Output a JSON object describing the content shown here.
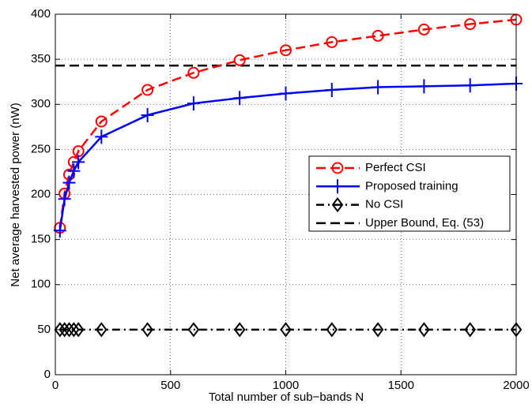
{
  "chart_data": {
    "type": "line",
    "xlabel": "Total number of sub−bands N",
    "ylabel": "Net average harvested power (nW)",
    "x": [
      20,
      40,
      60,
      80,
      100,
      200,
      400,
      600,
      800,
      1000,
      1200,
      1400,
      1600,
      1800,
      2000
    ],
    "series": [
      {
        "name": "Perfect CSI",
        "color": "#ff0000",
        "linestyle": "dashed",
        "marker": "circle",
        "values": [
          163,
          201,
          222,
          236,
          248,
          281,
          316,
          335,
          349,
          360,
          369,
          376,
          383,
          389,
          394
        ]
      },
      {
        "name": "Proposed training",
        "color": "#0000ff",
        "linestyle": "solid",
        "marker": "plus",
        "values": [
          160,
          195,
          213,
          226,
          236,
          264,
          288,
          301,
          307,
          312,
          316,
          319,
          320,
          321,
          323
        ]
      },
      {
        "name": "No CSI",
        "color": "#000000",
        "linestyle": "dashdot",
        "marker": "diamond",
        "values": [
          50,
          50,
          50,
          50,
          50,
          50,
          50,
          50,
          50,
          50,
          50,
          50,
          50,
          50,
          50
        ]
      }
    ],
    "hline": {
      "name": "Upper Bound, Eq. (53)",
      "color": "#000000",
      "linestyle": "dashed",
      "value": 343
    },
    "xlim": [
      0,
      2000
    ],
    "xticks": [
      0,
      500,
      1000,
      1500,
      2000
    ],
    "ylim": [
      0,
      400
    ],
    "yticks": [
      0,
      50,
      100,
      150,
      200,
      250,
      300,
      350,
      400
    ],
    "grid": true,
    "legend": "center right"
  }
}
